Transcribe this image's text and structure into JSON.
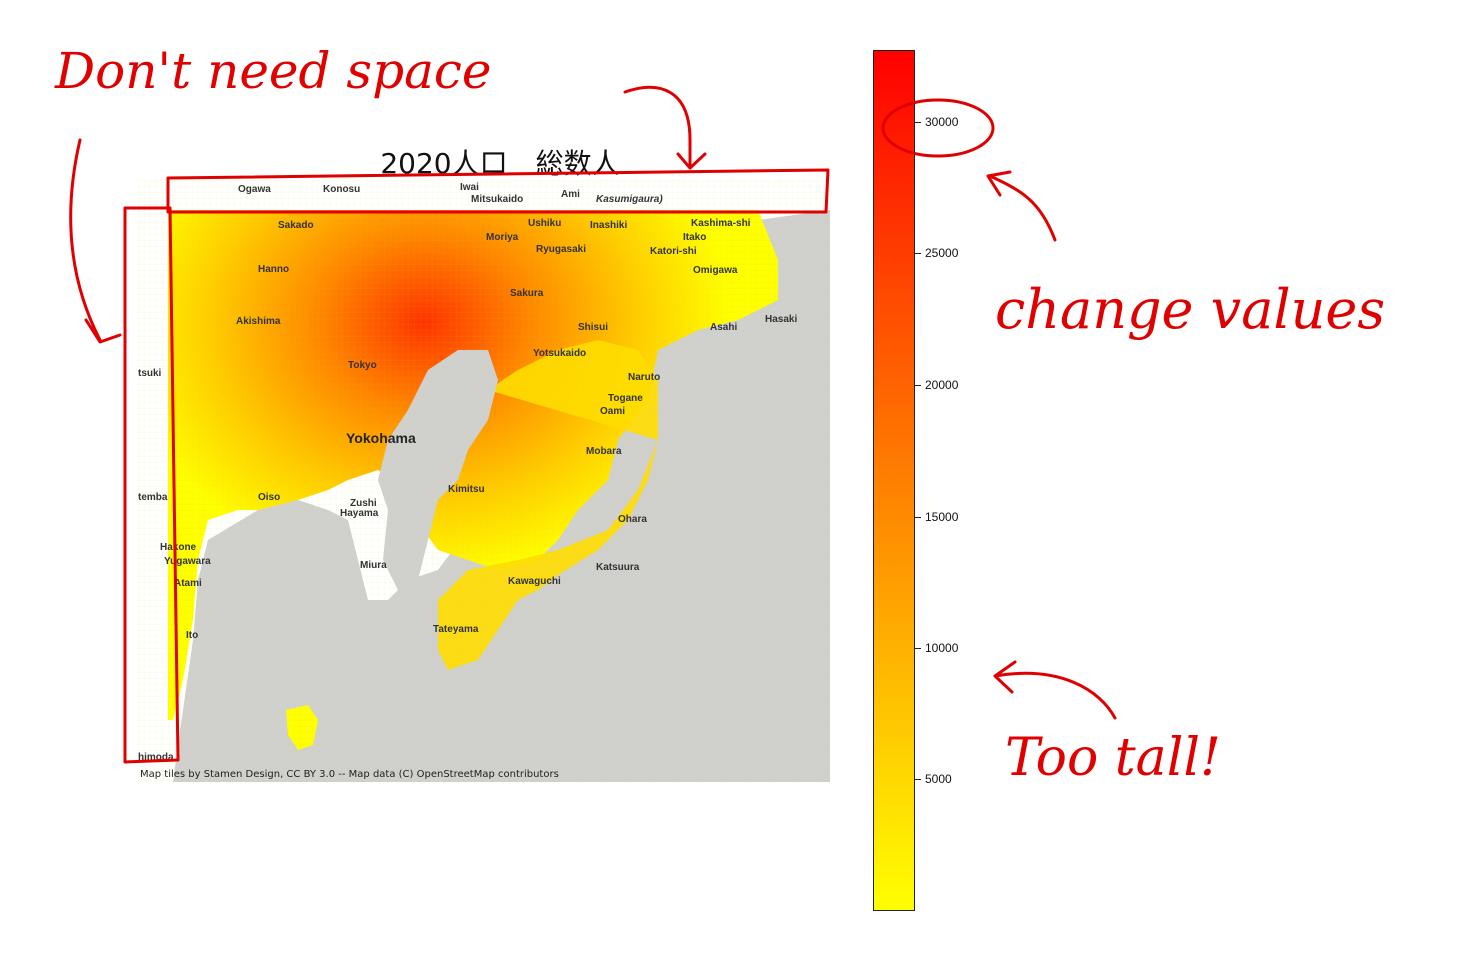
{
  "title": "2020人口　総数人",
  "attribution": "Map tiles by Stamen Design, CC BY 3.0 -- Map data (C) OpenStreetMap contributors",
  "places": [
    {
      "name": "Ogawa",
      "key": "ogawa"
    },
    {
      "name": "Konosu",
      "key": "konosu"
    },
    {
      "name": "Iwai",
      "key": "iwai"
    },
    {
      "name": "Mitsukaido",
      "key": "mitsukaido"
    },
    {
      "name": "Ami",
      "key": "ami"
    },
    {
      "name": "Kasumigaura)",
      "key": "kasumigaura"
    },
    {
      "name": "Kashima-shi",
      "key": "kashima"
    },
    {
      "name": "Itako",
      "key": "itako"
    },
    {
      "name": "Katori-shi",
      "key": "katori"
    },
    {
      "name": "Omigawa",
      "key": "omigawa"
    },
    {
      "name": "Hasaki",
      "key": "hasaki"
    },
    {
      "name": "Asahi",
      "key": "asahi"
    },
    {
      "name": "Shisui",
      "key": "shisui"
    },
    {
      "name": "Yotsukaido",
      "key": "yotsukaido"
    },
    {
      "name": "Naruto",
      "key": "naruto"
    },
    {
      "name": "Togane",
      "key": "togane"
    },
    {
      "name": "Oami",
      "key": "oami"
    },
    {
      "name": "Mobara",
      "key": "mobara"
    },
    {
      "name": "Ohara",
      "key": "ohara"
    },
    {
      "name": "Katsuura",
      "key": "katsuura"
    },
    {
      "name": "Kawaguchi",
      "key": "kawaguchi"
    },
    {
      "name": "Tateyama",
      "key": "tateyama"
    },
    {
      "name": "Kimitsu",
      "key": "kimitsu"
    },
    {
      "name": "Miura",
      "key": "miura"
    },
    {
      "name": "Zushi",
      "key": "zushi"
    },
    {
      "name": "Hayama",
      "key": "hayama"
    },
    {
      "name": "Oiso",
      "key": "oiso"
    },
    {
      "name": "Hakone",
      "key": "hakone"
    },
    {
      "name": "Yugawara",
      "key": "yugawara"
    },
    {
      "name": "Atami",
      "key": "atami"
    },
    {
      "name": "Ito",
      "key": "ito"
    },
    {
      "name": "Yokohama",
      "key": "yokohama"
    },
    {
      "name": "Tokyo",
      "key": "tokyo"
    },
    {
      "name": "Akishima",
      "key": "akishima"
    },
    {
      "name": "Hanno",
      "key": "hanno"
    },
    {
      "name": "Sakado",
      "key": "sakado"
    },
    {
      "name": "Moriya",
      "key": "moriya"
    },
    {
      "name": "Ryugasaki",
      "key": "ryugasaki"
    },
    {
      "name": "Inashiki",
      "key": "inashiki"
    },
    {
      "name": "Ushiku",
      "key": "ushiku"
    },
    {
      "name": "Sakura",
      "key": "sakura"
    },
    {
      "name": "tsuki",
      "key": "otsuki"
    },
    {
      "name": "temba",
      "key": "gotemba"
    },
    {
      "name": "himoda",
      "key": "shimoda"
    }
  ],
  "colorbar": {
    "ticks": [
      "5000",
      "10000",
      "15000",
      "20000",
      "25000",
      "30000"
    ],
    "colors_low_to_high": [
      "#ffff00",
      "#ffcc00",
      "#ff9900",
      "#ff6600",
      "#ff3300",
      "#ff0000"
    ]
  },
  "annotations": {
    "dont_need_space": "Don't need space",
    "change_values": "change values",
    "too_tall": "Too tall!"
  },
  "colors": {
    "annotation": "#e00000",
    "sea": "#d0d0d0",
    "land": "#ffffff",
    "low_density": "#ffff00",
    "high_density": "#ff3300"
  }
}
